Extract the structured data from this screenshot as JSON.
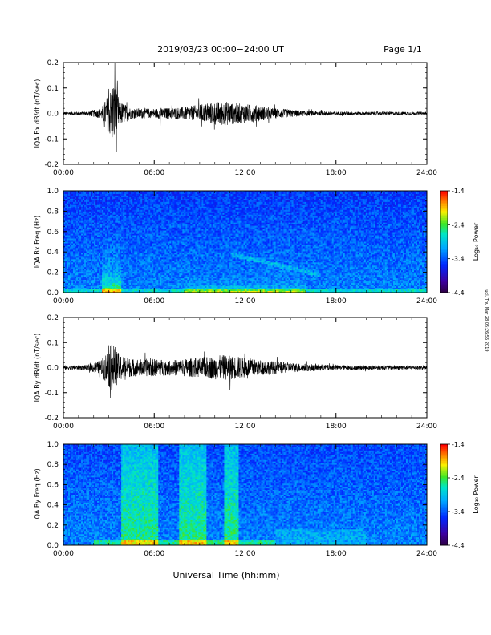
{
  "header": {
    "title": "2019/03/23  00:00−24:00 UT",
    "page": "Page 1/1"
  },
  "side_stamp": "ucl. Thu Mar 28 05:26:55 2019",
  "colorbar": {
    "ticks": [
      "-1.4",
      "-2.4",
      "-3.4",
      "-4.4"
    ],
    "label": "Log₁₀ Power",
    "range": [
      -4.4,
      -1.4
    ]
  },
  "xlabel": "Universal Time (hh:mm)",
  "chart_data": [
    {
      "type": "line",
      "ylabel": "IQA Bx dB/dt (nT/sec)",
      "ylim": [
        -0.2,
        0.2
      ],
      "yticks": [
        "0.2",
        "0.1",
        "0.0",
        "-0.1",
        "-0.2"
      ],
      "xticks": [
        "00:00",
        "06:00",
        "12:00",
        "18:00",
        "24:00"
      ],
      "xlim_hours": [
        0,
        24
      ],
      "envelope": {
        "hours": [
          0,
          1.5,
          2.5,
          3.0,
          3.3,
          3.5,
          3.7,
          4.5,
          6.0,
          8.0,
          9.5,
          10.5,
          11.5,
          12.5,
          14.0,
          16.0,
          18.0,
          24.0
        ],
        "amplitude": [
          0.006,
          0.008,
          0.02,
          0.08,
          0.13,
          0.1,
          0.05,
          0.02,
          0.02,
          0.025,
          0.04,
          0.05,
          0.04,
          0.035,
          0.02,
          0.01,
          0.007,
          0.006
        ]
      },
      "spikes": [
        {
          "hour": 3.4,
          "value": 0.2
        },
        {
          "hour": 3.5,
          "value": -0.15
        },
        {
          "hour": 6.4,
          "value": -0.05
        }
      ]
    },
    {
      "type": "heatmap",
      "ylabel": "IQA Bx Freq (Hz)",
      "ylim": [
        0.0,
        1.0
      ],
      "yticks": [
        "1.0",
        "0.8",
        "0.6",
        "0.4",
        "0.2",
        "0.0"
      ],
      "xticks": [
        "00:00",
        "06:00",
        "12:00",
        "18:00",
        "24:00"
      ],
      "xlim_hours": [
        0,
        24
      ]
    },
    {
      "type": "line",
      "ylabel": "IQA By dB/dt (nT/sec)",
      "ylim": [
        -0.2,
        0.2
      ],
      "yticks": [
        "0.2",
        "0.1",
        "0.0",
        "-0.1",
        "-0.2"
      ],
      "xticks": [
        "00:00",
        "06:00",
        "12:00",
        "18:00",
        "24:00"
      ],
      "xlim_hours": [
        0,
        24
      ],
      "envelope": {
        "hours": [
          0,
          1.5,
          2.5,
          3.0,
          3.3,
          3.6,
          4.5,
          6.0,
          7.0,
          9.0,
          10.5,
          11.5,
          12.5,
          14.0,
          16.0,
          18.0,
          24.0
        ],
        "amplitude": [
          0.008,
          0.01,
          0.03,
          0.08,
          0.1,
          0.06,
          0.035,
          0.035,
          0.03,
          0.04,
          0.05,
          0.045,
          0.035,
          0.025,
          0.015,
          0.01,
          0.008
        ]
      },
      "spikes": [
        {
          "hour": 3.2,
          "value": 0.17
        },
        {
          "hour": 3.1,
          "value": -0.12
        },
        {
          "hour": 11.0,
          "value": -0.09
        }
      ]
    },
    {
      "type": "heatmap",
      "ylabel": "IQA By Freq (Hz)",
      "ylim": [
        0.0,
        1.0
      ],
      "yticks": [
        "1.0",
        "0.8",
        "0.6",
        "0.4",
        "0.2",
        "0.0"
      ],
      "xticks": [
        "00:00",
        "06:00",
        "12:00",
        "18:00",
        "24:00"
      ],
      "xlim_hours": [
        0,
        24
      ]
    }
  ]
}
